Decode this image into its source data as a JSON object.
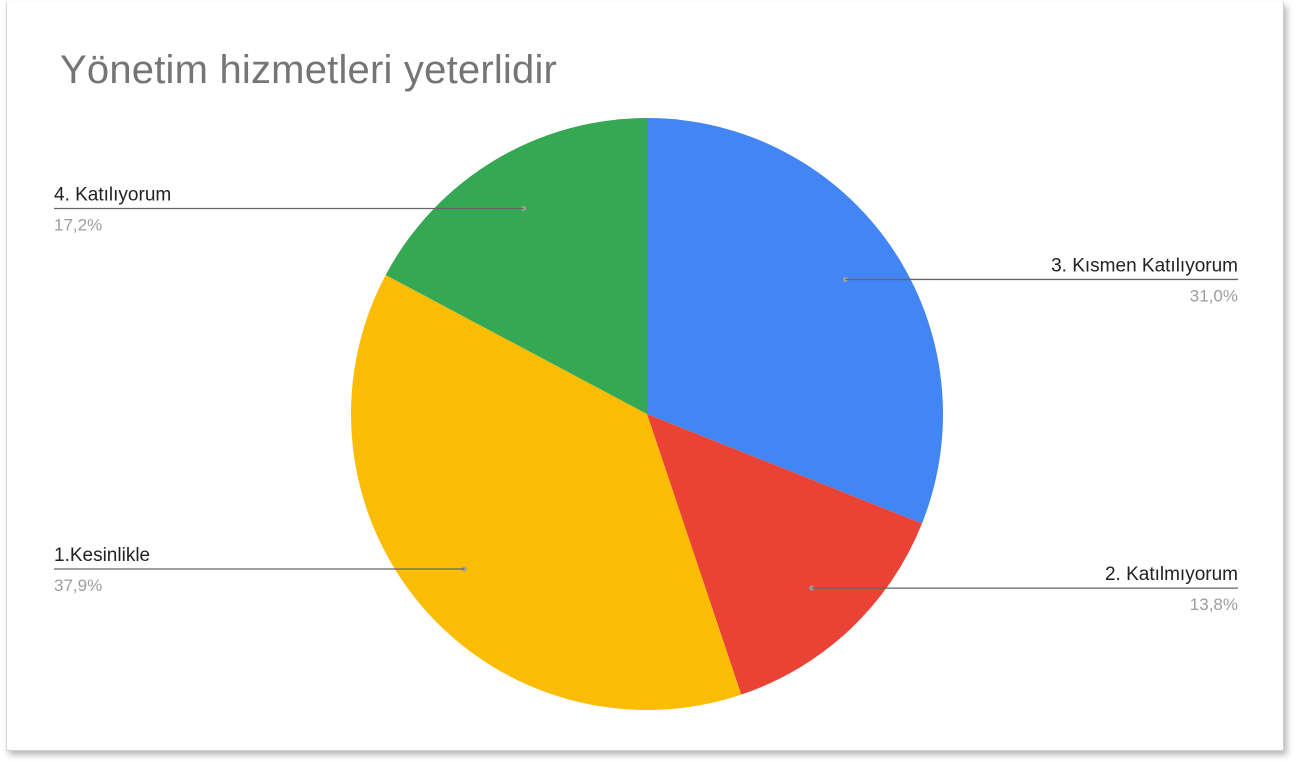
{
  "chart_data": {
    "type": "pie",
    "title": "Yönetim hizmetleri yeterlidir",
    "slices": [
      {
        "label": "3. Kısmen Katılıyorum",
        "value": 31.0,
        "percent_label": "31,0%",
        "color": "#4285F4",
        "label_side": "right"
      },
      {
        "label": "2. Katılmıyorum",
        "value": 13.8,
        "percent_label": "13,8%",
        "color": "#EA4335",
        "label_side": "right"
      },
      {
        "label": "1.Kesinlikle",
        "value": 37.9,
        "percent_label": "37,9%",
        "color": "#FBBC04",
        "label_side": "left"
      },
      {
        "label": "4. Katılıyorum",
        "value": 17.2,
        "percent_label": "17,2%",
        "color": "#34A853",
        "label_side": "left"
      }
    ],
    "start_angle_deg": 0,
    "direction": "clockwise"
  }
}
